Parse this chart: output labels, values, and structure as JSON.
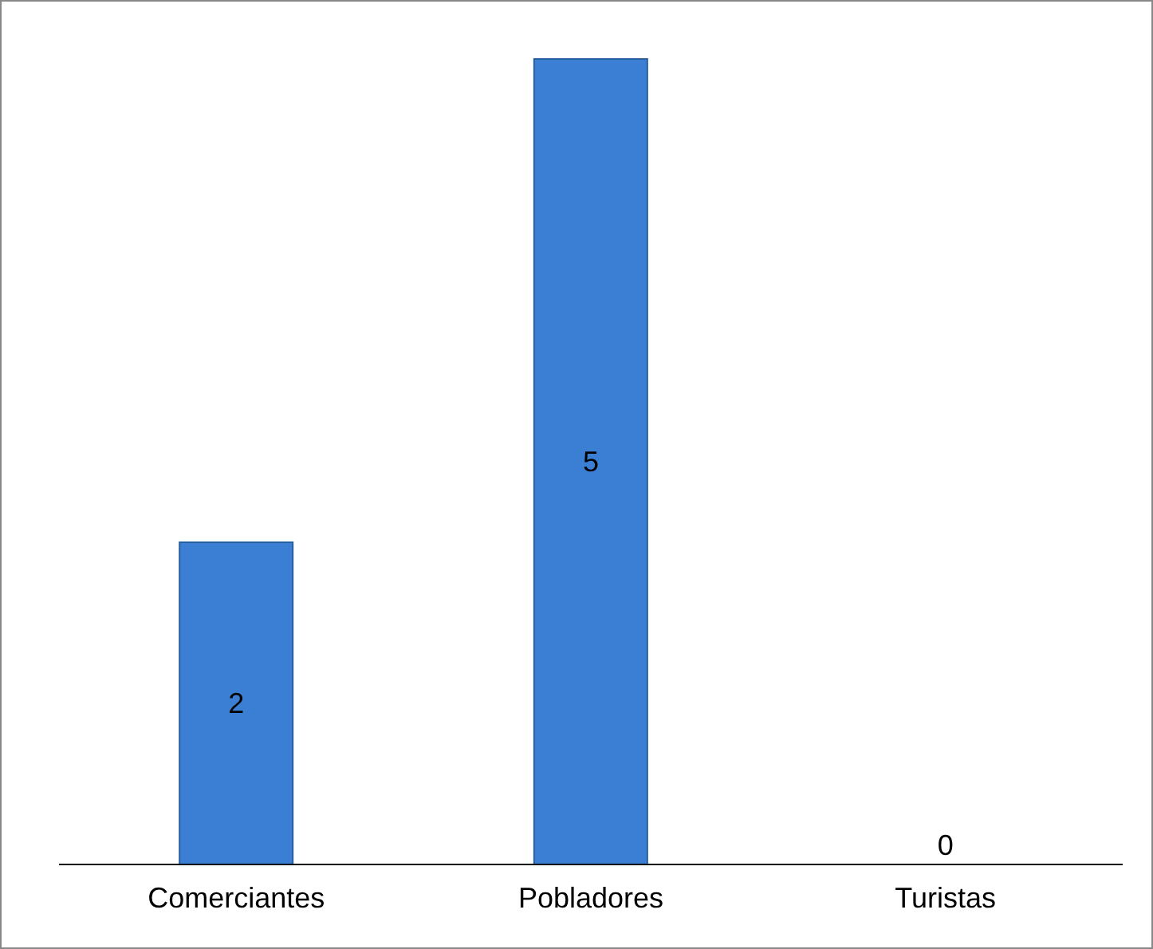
{
  "chart_data": {
    "type": "bar",
    "categories": [
      "Comerciantes",
      "Pobladores",
      "Turistas"
    ],
    "values": [
      2,
      5,
      0
    ],
    "color": "#3b7fd4",
    "data_labels": true
  }
}
